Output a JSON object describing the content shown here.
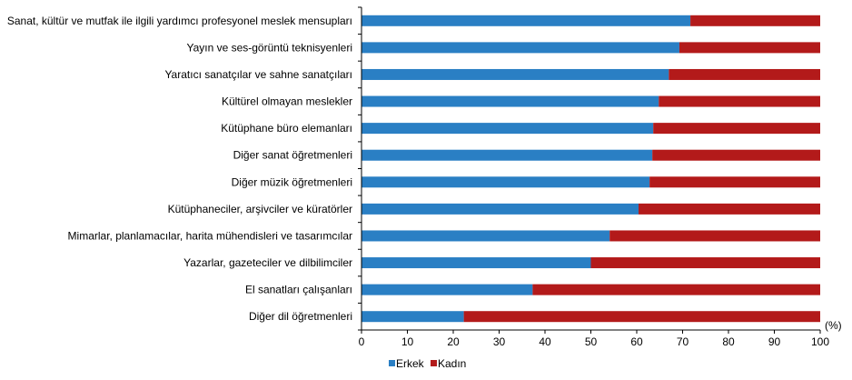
{
  "chart_data": {
    "type": "bar",
    "orientation": "horizontal",
    "stacked": true,
    "categories": [
      "Sanat, kültür ve mutfak ile ilgili yardımcı profesyonel meslek mensupları",
      "Yayın ve ses-görüntü teknisyenleri",
      "Yaratıcı sanatçılar ve sahne sanatçıları",
      "Kültürel olmayan meslekler",
      "Kütüphane büro elemanları",
      "Diğer sanat öğretmenleri",
      "Diğer müzik öğretmenleri",
      "Kütüphaneciler, arşivciler ve küratörler",
      "Mimarlar, planlamacılar, harita mühendisleri ve tasarımcılar",
      "Yazarlar, gazeteciler ve dilbilimciler",
      "El sanatları çalışanları",
      "Diğer dil öğretmenleri"
    ],
    "series": [
      {
        "name": "Erkek",
        "color": "#2a7fc4",
        "values": [
          71.7,
          69.3,
          67.0,
          64.8,
          63.6,
          63.4,
          62.8,
          60.4,
          54.1,
          50.0,
          37.3,
          22.3
        ]
      },
      {
        "name": "Kadın",
        "color": "#b31a1a",
        "values": [
          28.3,
          30.7,
          33.0,
          35.2,
          36.4,
          36.6,
          37.2,
          39.6,
          45.9,
          50.0,
          62.7,
          77.7
        ]
      }
    ],
    "xlim": [
      0,
      100
    ],
    "xticks": [
      0,
      10,
      20,
      30,
      40,
      50,
      60,
      70,
      80,
      90,
      100
    ],
    "xunit": "(%)",
    "grid": false,
    "legend": "bottom-left"
  }
}
